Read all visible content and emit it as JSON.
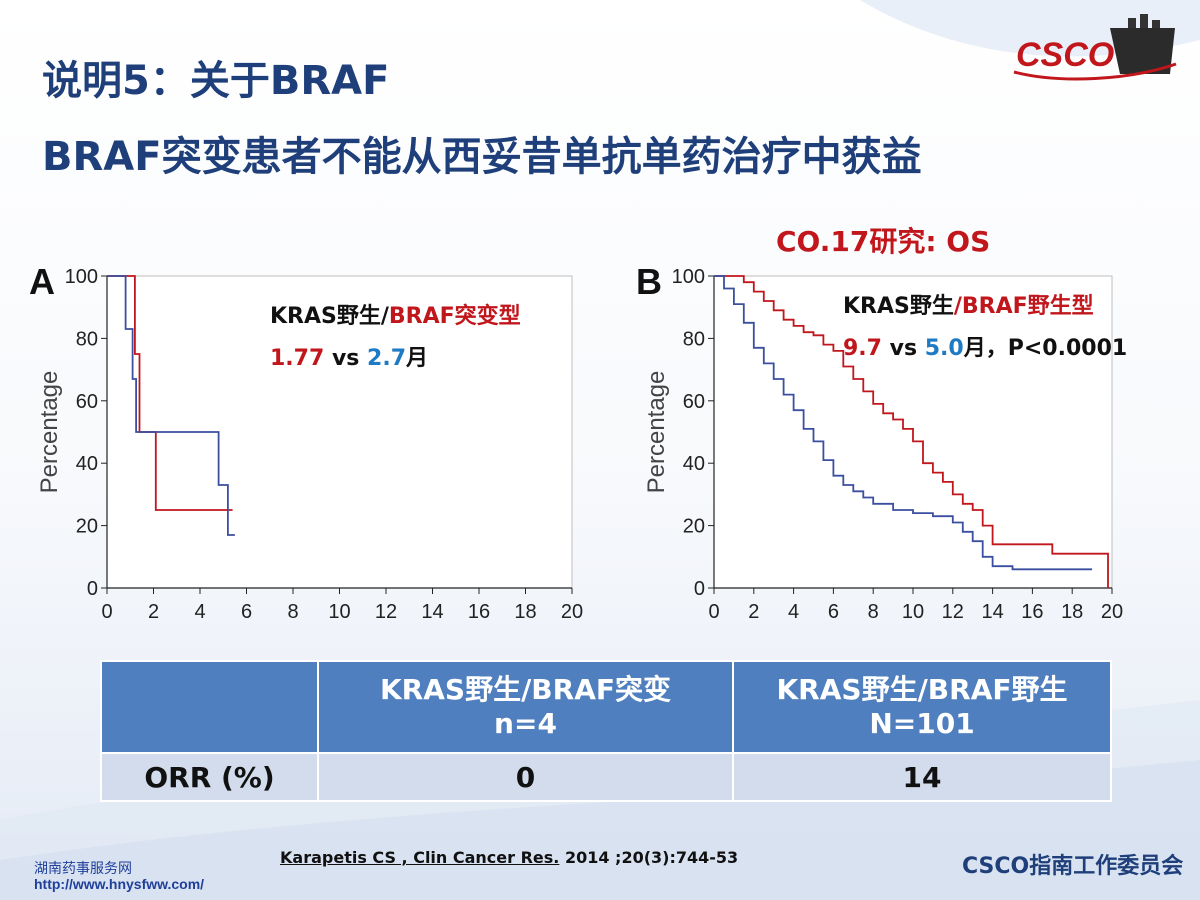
{
  "slide": {
    "title_line1": "说明5：关于BRAF",
    "title_line2": "BRAF突变患者不能从西妥昔单抗单药治疗中获益",
    "logo_text": "CSCO",
    "study_label": "CO.17研究: OS",
    "footer_org": "CSCO指南工作委员会",
    "reference": {
      "authors": "Karapetis CS , Clin Cancer Res.",
      "rest": " 2014 ;20(3):744-53"
    },
    "watermark": {
      "name": "湖南药事服务网",
      "url": "http://www.hnysfww.com/"
    },
    "colors": {
      "title": "#1f3f7a",
      "red": "#c0161c",
      "blue": "#1f7ac4",
      "table_head": "#4f7fbf",
      "table_row": "#d3dcec"
    }
  },
  "annotations": {
    "a": {
      "line1_prefix": "KRAS野生/",
      "line1_red": "BRAF突变型",
      "val_red": "1.77",
      "vs": " vs ",
      "val_blue": "2.7",
      "unit": "月"
    },
    "b": {
      "line1_prefix": "KRAS野生",
      "line1_red": "/BRAF野生型",
      "val_red": "9.7",
      "vs": " vs ",
      "val_blue": "5.0",
      "unit": "月，P<0.0001"
    }
  },
  "table": {
    "columns": [
      "",
      "KRAS野生/BRAF突变\nn=4",
      "KRAS野生/BRAF野生\nN=101"
    ],
    "rows": [
      [
        "ORR (%)",
        "0",
        "14"
      ]
    ]
  },
  "chart_data": [
    {
      "type": "line",
      "panel_label": "A",
      "ylabel": "Percentage",
      "xlim": [
        0,
        20
      ],
      "ylim": [
        0,
        100
      ],
      "xticks": [
        "0",
        "2",
        "4",
        "6",
        "8",
        "10",
        "12",
        "14",
        "16",
        "18",
        "20"
      ],
      "yticks": [
        "0",
        "20",
        "40",
        "60",
        "80",
        "100"
      ],
      "series": [
        {
          "color": "#c0161c",
          "steps": [
            [
              0,
              100
            ],
            [
              1.2,
              100
            ],
            [
              1.2,
              75
            ],
            [
              1.4,
              75
            ],
            [
              1.4,
              50
            ],
            [
              2.1,
              50
            ],
            [
              2.1,
              25
            ],
            [
              5.4,
              25
            ]
          ]
        },
        {
          "color": "#3b4fa0",
          "steps": [
            [
              0,
              100
            ],
            [
              0.8,
              100
            ],
            [
              0.8,
              83
            ],
            [
              1.1,
              83
            ],
            [
              1.1,
              67
            ],
            [
              1.25,
              67
            ],
            [
              1.25,
              50
            ],
            [
              4.8,
              50
            ],
            [
              4.8,
              33
            ],
            [
              5.2,
              33
            ],
            [
              5.2,
              17
            ],
            [
              5.5,
              17
            ]
          ]
        }
      ]
    },
    {
      "type": "line",
      "panel_label": "B",
      "ylabel": "Percentage",
      "xlim": [
        0,
        20
      ],
      "ylim": [
        0,
        100
      ],
      "xticks": [
        "0",
        "2",
        "4",
        "6",
        "8",
        "10",
        "12",
        "14",
        "16",
        "18",
        "20"
      ],
      "yticks": [
        "0",
        "20",
        "40",
        "60",
        "80",
        "100"
      ],
      "series": [
        {
          "color": "#c0161c",
          "points": [
            [
              0,
              100
            ],
            [
              1,
              100
            ],
            [
              1.5,
              98
            ],
            [
              2,
              95
            ],
            [
              2.5,
              92
            ],
            [
              3,
              89
            ],
            [
              3.5,
              86
            ],
            [
              4,
              84
            ],
            [
              4.5,
              82
            ],
            [
              5,
              81
            ],
            [
              5.5,
              78
            ],
            [
              6,
              76
            ],
            [
              6.5,
              71
            ],
            [
              7,
              67
            ],
            [
              7.5,
              63
            ],
            [
              8,
              59
            ],
            [
              8.5,
              56
            ],
            [
              9,
              54
            ],
            [
              9.5,
              51
            ],
            [
              10,
              47
            ],
            [
              10.5,
              40
            ],
            [
              11,
              37
            ],
            [
              11.5,
              34
            ],
            [
              12,
              30
            ],
            [
              12.5,
              27
            ],
            [
              13,
              25
            ],
            [
              13.5,
              20
            ],
            [
              14,
              14
            ],
            [
              15,
              14
            ],
            [
              16,
              14
            ],
            [
              17,
              11
            ],
            [
              19.7,
              11
            ],
            [
              19.8,
              0
            ]
          ]
        },
        {
          "color": "#3b4fa0",
          "points": [
            [
              0,
              100
            ],
            [
              0.5,
              96
            ],
            [
              1,
              91
            ],
            [
              1.5,
              85
            ],
            [
              2,
              77
            ],
            [
              2.5,
              72
            ],
            [
              3,
              67
            ],
            [
              3.5,
              62
            ],
            [
              4,
              57
            ],
            [
              4.5,
              51
            ],
            [
              5,
              47
            ],
            [
              5.5,
              41
            ],
            [
              6,
              36
            ],
            [
              6.5,
              33
            ],
            [
              7,
              31
            ],
            [
              7.5,
              29
            ],
            [
              8,
              27
            ],
            [
              9,
              25
            ],
            [
              10,
              24
            ],
            [
              11,
              23
            ],
            [
              12,
              21
            ],
            [
              12.5,
              18
            ],
            [
              13,
              15
            ],
            [
              13.5,
              10
            ],
            [
              14,
              7
            ],
            [
              15,
              6
            ],
            [
              16,
              6
            ],
            [
              19,
              6
            ]
          ]
        }
      ]
    }
  ]
}
